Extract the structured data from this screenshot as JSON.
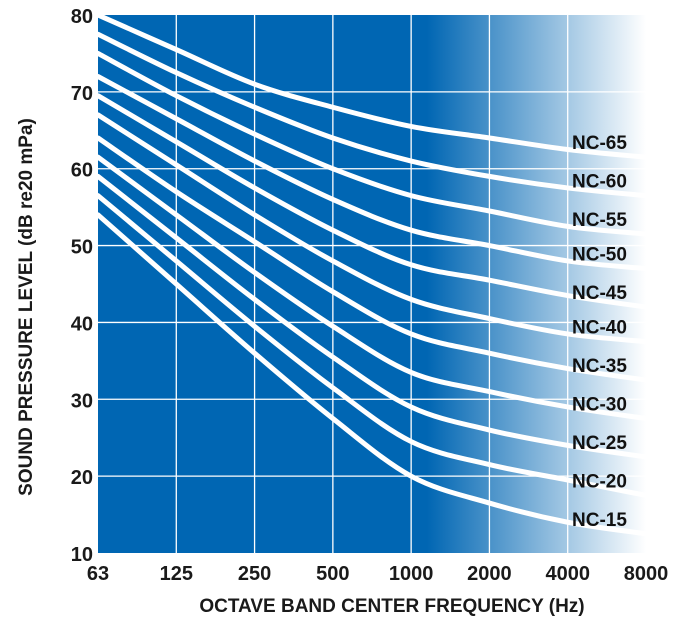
{
  "chart_data": {
    "type": "line",
    "title": "",
    "xlabel": "OCTAVE BAND CENTER FREQUENCY (Hz)",
    "ylabel": "SOUND PRESSURE LEVEL (dB re20 mPa)",
    "x_scale": "log2",
    "categories": [
      "63",
      "125",
      "250",
      "500",
      "1000",
      "2000",
      "4000",
      "8000"
    ],
    "ylim": [
      10,
      80
    ],
    "yticks": [
      "10",
      "20",
      "30",
      "40",
      "50",
      "60",
      "70",
      "80"
    ],
    "grid": true,
    "colors": {
      "background_start": "#0066b3",
      "background_end": "#ffffff",
      "curves": "#ffffff",
      "gridlines": "#ffffff"
    },
    "series": [
      {
        "name": "NC-65",
        "values": [
          80,
          75.5,
          71,
          68,
          65.5,
          64,
          62.5,
          61.5
        ]
      },
      {
        "name": "NC-60",
        "values": [
          77.5,
          72.5,
          68,
          64,
          61,
          59,
          57.5,
          56.5
        ]
      },
      {
        "name": "NC-55",
        "values": [
          75,
          69.5,
          64.5,
          60,
          56.5,
          54.5,
          52.5,
          51.5
        ]
      },
      {
        "name": "NC-50",
        "values": [
          72,
          66.5,
          61,
          56,
          52,
          50,
          48,
          47
        ]
      },
      {
        "name": "NC-45",
        "values": [
          69.5,
          63.5,
          57.5,
          52,
          47.5,
          45.5,
          43.5,
          42
        ]
      },
      {
        "name": "NC-40",
        "values": [
          67,
          60.5,
          54,
          48,
          43,
          40.5,
          38.5,
          37.5
        ]
      },
      {
        "name": "NC-35",
        "values": [
          64,
          57,
          50.5,
          44,
          38.5,
          36,
          34,
          32.5
        ]
      },
      {
        "name": "NC-30",
        "values": [
          61.5,
          54,
          46.5,
          39.5,
          33.5,
          31,
          29,
          27.5
        ]
      },
      {
        "name": "NC-25",
        "values": [
          59,
          51,
          43,
          35.5,
          29,
          26,
          24,
          22.5
        ]
      },
      {
        "name": "NC-20",
        "values": [
          56.5,
          48,
          39.5,
          31.5,
          24.5,
          21.5,
          19.5,
          17.5
        ]
      },
      {
        "name": "NC-15",
        "values": [
          54,
          45,
          36,
          27.5,
          20,
          16.5,
          14,
          12.5
        ]
      }
    ]
  }
}
